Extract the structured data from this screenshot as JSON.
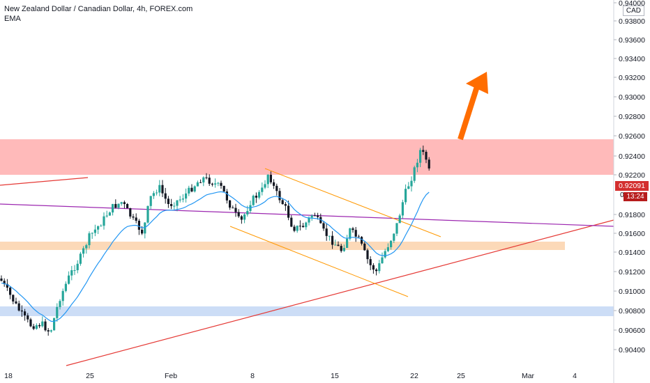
{
  "header": {
    "title": "New Zealand Dollar / Canadian Dollar, 4h, FOREX.com",
    "indicator": "EMA",
    "currency": "CAD"
  },
  "price_tags": {
    "last_price": "0.92091",
    "countdown": "13:24",
    "partial_label": "0"
  },
  "colors": {
    "up": "#26a69a",
    "down": "#ef5350",
    "bull_candle": "#26a69a",
    "candle_dark": "#131722",
    "ema": "#2196f3",
    "resistance_zone": "#ffb3b3",
    "support_zone": "#fcd5b0",
    "lower_zone": "#c6d9f5",
    "trendline_red": "#e53935",
    "trendline_purple": "#9c27b0",
    "channel_orange": "#ff9800",
    "arrow": "#ff6d00",
    "tag_red": "#d32f2f"
  },
  "chart_data": {
    "type": "candlestick",
    "y_ticks": [
      "0.94000",
      "0.93800",
      "0.93600",
      "0.93400",
      "0.93200",
      "0.93000",
      "0.92800",
      "0.92600",
      "0.92400",
      "0.92200",
      "0.91800",
      "0.91600",
      "0.91400",
      "0.91200",
      "0.91000",
      "0.90800",
      "0.90600",
      "0.90400"
    ],
    "ylim": [
      0.903,
      0.9408
    ],
    "x_ticks": [
      "18",
      "25",
      "Feb",
      "8",
      "15",
      "22",
      "25",
      "Mar",
      "4"
    ],
    "zones": [
      {
        "name": "resistance",
        "y1": 0.9219,
        "y2": 0.9256
      },
      {
        "name": "support",
        "y1": 0.9146,
        "y2": 0.9153
      },
      {
        "name": "lower",
        "y1": 0.9077,
        "y2": 0.9086
      }
    ],
    "last_price": 0.92091
  }
}
